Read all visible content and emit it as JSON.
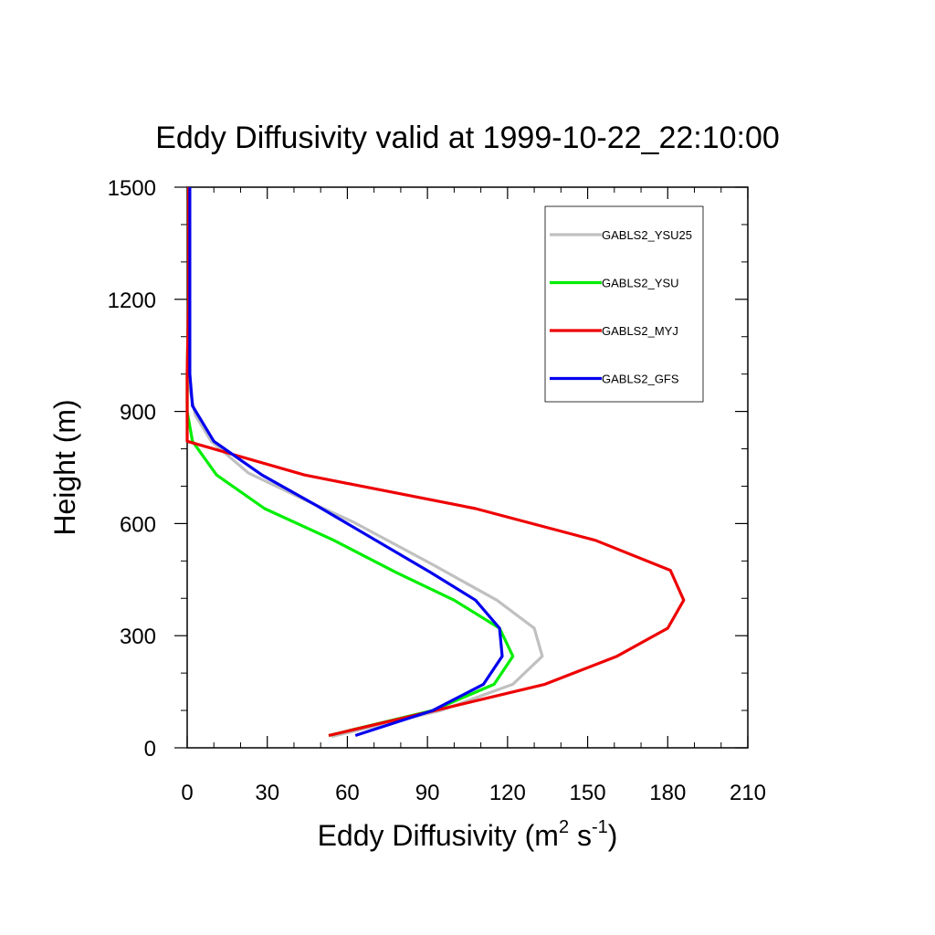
{
  "chart_data": {
    "type": "line",
    "title": "Eddy Diffusivity valid at 1999-10-22_22:10:00",
    "xlabel": {
      "base": "Eddy Diffusivity (m",
      "sup1": "2",
      "mid": " s",
      "sup2": "-1",
      "end": ")"
    },
    "ylabel": "Height (m)",
    "xlim": [
      0,
      210
    ],
    "ylim": [
      0,
      1500
    ],
    "xticks": [
      0,
      30,
      60,
      90,
      120,
      150,
      180,
      210
    ],
    "yticks": [
      0,
      300,
      600,
      900,
      1200,
      1500
    ],
    "xtick_labels": [
      "0",
      "30",
      "60",
      "90",
      "120",
      "150",
      "180",
      "210"
    ],
    "ytick_labels": [
      "0",
      "300",
      "600",
      "900",
      "1200",
      "1500"
    ],
    "legend_position": "top-right",
    "grid": false,
    "series": [
      {
        "name": "GABLS2_YSU25",
        "color": "#c0c0c0",
        "points": [
          [
            54,
            30
          ],
          [
            95,
            100
          ],
          [
            122,
            170
          ],
          [
            133,
            245
          ],
          [
            130,
            320
          ],
          [
            116,
            395
          ],
          [
            92,
            490
          ],
          [
            62,
            605
          ],
          [
            45,
            660
          ],
          [
            23,
            735
          ],
          [
            9,
            820
          ],
          [
            3,
            890
          ],
          [
            1,
            960
          ],
          [
            0.5,
            1050
          ],
          [
            0.5,
            1250
          ],
          [
            0.5,
            1500
          ]
        ]
      },
      {
        "name": "GABLS2_YSU",
        "color": "#00ee00",
        "points": [
          [
            53,
            33
          ],
          [
            92,
            100
          ],
          [
            115,
            170
          ],
          [
            122,
            245
          ],
          [
            117,
            320
          ],
          [
            100,
            395
          ],
          [
            78,
            470
          ],
          [
            55,
            555
          ],
          [
            29,
            640
          ],
          [
            11,
            730
          ],
          [
            2,
            820
          ],
          [
            0,
            900
          ],
          [
            0,
            1000
          ],
          [
            0.5,
            1200
          ],
          [
            0.5,
            1500
          ]
        ]
      },
      {
        "name": "GABLS2_MYJ",
        "color": "#ee0000",
        "points": [
          [
            53,
            33
          ],
          [
            93,
            100
          ],
          [
            134,
            170
          ],
          [
            161,
            245
          ],
          [
            180,
            320
          ],
          [
            186,
            395
          ],
          [
            181,
            475
          ],
          [
            153,
            555
          ],
          [
            108,
            640
          ],
          [
            44,
            730
          ],
          [
            0,
            820
          ],
          [
            0,
            900
          ],
          [
            0,
            1000
          ],
          [
            0.5,
            1200
          ],
          [
            0.5,
            1500
          ]
        ]
      },
      {
        "name": "GABLS2_GFS",
        "color": "#0000ee",
        "points": [
          [
            63,
            33
          ],
          [
            92,
            100
          ],
          [
            111,
            170
          ],
          [
            118,
            245
          ],
          [
            117,
            320
          ],
          [
            108,
            395
          ],
          [
            91,
            470
          ],
          [
            48,
            650
          ],
          [
            28,
            730
          ],
          [
            10,
            820
          ],
          [
            2,
            915
          ],
          [
            1,
            1000
          ],
          [
            1,
            1200
          ],
          [
            1,
            1500
          ]
        ]
      }
    ]
  }
}
